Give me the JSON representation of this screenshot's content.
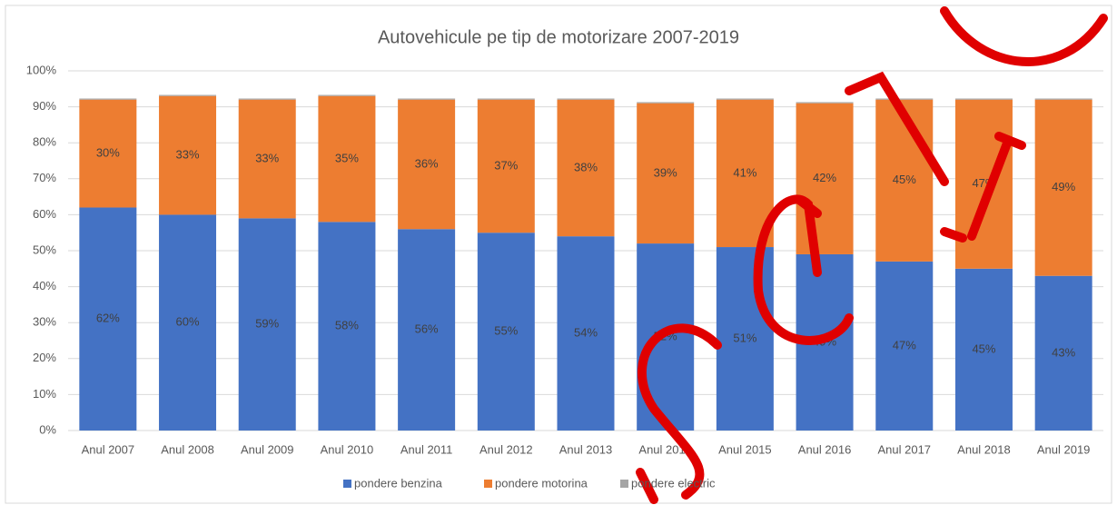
{
  "chart_data": {
    "type": "stacked_bar",
    "title": "Autovehicule pe tip de motorizare 2007-2019",
    "categories": [
      "Anul 2007",
      "Anul 2008",
      "Anul 2009",
      "Anul 2010",
      "Anul 2011",
      "Anul 2012",
      "Anul 2013",
      "Anul 2014",
      "Anul 2015",
      "Anul 2016",
      "Anul 2017",
      "Anul 2018",
      "Anul 2019"
    ],
    "series": [
      {
        "name": "pondere benzina",
        "color": "#4472c4",
        "values": [
          62,
          60,
          59,
          58,
          56,
          55,
          54,
          52,
          51,
          49,
          47,
          45,
          43
        ],
        "value_labels": [
          "62%",
          "60%",
          "59%",
          "58%",
          "56%",
          "55%",
          "54%",
          "52%",
          "51%",
          "49%",
          "47%",
          "45%",
          "43%"
        ]
      },
      {
        "name": "pondere motorina",
        "color": "#ed7d31",
        "values": [
          30,
          33,
          33,
          35,
          36,
          37,
          38,
          39,
          41,
          42,
          45,
          47,
          49
        ],
        "value_labels": [
          "30%",
          "33%",
          "33%",
          "35%",
          "36%",
          "37%",
          "38%",
          "39%",
          "41%",
          "42%",
          "45%",
          "47%",
          "49%"
        ]
      },
      {
        "name": "pondere electric",
        "color": "#a5a5a5",
        "values": [
          0.3,
          0.3,
          0.3,
          0.3,
          0.3,
          0.3,
          0.3,
          0.3,
          0.3,
          0.3,
          0.3,
          0.3,
          0.3
        ]
      }
    ],
    "ylim": [
      0,
      100
    ],
    "yticks": [
      {
        "value": 0,
        "label": "0%"
      },
      {
        "value": 10,
        "label": "10%"
      },
      {
        "value": 20,
        "label": "20%"
      },
      {
        "value": 30,
        "label": "30%"
      },
      {
        "value": 40,
        "label": "40%"
      },
      {
        "value": 50,
        "label": "50%"
      },
      {
        "value": 60,
        "label": "60%"
      },
      {
        "value": 70,
        "label": "70%"
      },
      {
        "value": 80,
        "label": "80%"
      },
      {
        "value": 90,
        "label": "90%"
      },
      {
        "value": 100,
        "label": "100%"
      }
    ],
    "grid": true,
    "legend": "bottom"
  }
}
